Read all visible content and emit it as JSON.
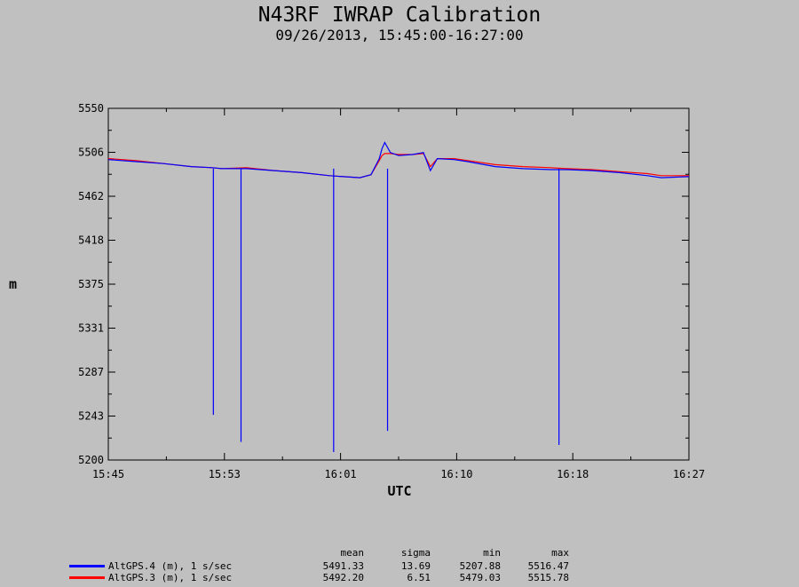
{
  "chart_data": {
    "type": "line",
    "title": "N43RF IWRAP Calibration",
    "subtitle": "09/26/2013, 15:45:00-16:27:00",
    "xlabel": "UTC",
    "ylabel": "m",
    "ylim": [
      5200,
      5550
    ],
    "xlim": [
      "15:45",
      "16:27"
    ],
    "yticks": [
      "5200",
      "5243",
      "5287",
      "5331",
      "5375",
      "5418",
      "5462",
      "5506",
      "5550"
    ],
    "xticks": [
      "15:45",
      "15:53",
      "16:01",
      "16:10",
      "16:18",
      "16:27"
    ],
    "grid": false,
    "legend_position": "bottom-left",
    "stat_headers": [
      "mean",
      "sigma",
      "min",
      "max"
    ],
    "series": [
      {
        "name": "AltGPS.4 (m), 1 s/sec",
        "color": "#0000ff",
        "stats": [
          "5491.33",
          "13.69",
          "5207.88",
          "5516.47"
        ],
        "points": [
          [
            "15:45",
            5499
          ],
          [
            "15:47",
            5497
          ],
          [
            "15:49",
            5495
          ],
          [
            "15:51",
            5492
          ],
          [
            "15:52.5",
            5491
          ],
          [
            "15:53.2",
            5490
          ],
          [
            "15:55",
            5490
          ],
          [
            "15:57",
            5488
          ],
          [
            "15:59",
            5486
          ],
          [
            "16:01",
            5483
          ],
          [
            "16:02",
            5482
          ],
          [
            "16:03.2",
            5481
          ],
          [
            "16:04",
            5484
          ],
          [
            "16:04.6",
            5500
          ],
          [
            "16:04.8",
            5510
          ],
          [
            "16:05",
            5516
          ],
          [
            "16:05.4",
            5506
          ],
          [
            "16:06",
            5503
          ],
          [
            "16:07",
            5504
          ],
          [
            "16:07.8",
            5506
          ],
          [
            "16:08.3",
            5488
          ],
          [
            "16:08.8",
            5500
          ],
          [
            "16:10",
            5499
          ],
          [
            "16:11",
            5497
          ],
          [
            "16:13",
            5492
          ],
          [
            "16:15",
            5490
          ],
          [
            "16:17",
            5489
          ],
          [
            "16:18.2",
            5489
          ],
          [
            "16:20",
            5488
          ],
          [
            "16:22",
            5486
          ],
          [
            "16:24",
            5483
          ],
          [
            "16:25",
            5481
          ],
          [
            "16:27",
            5482
          ]
        ],
        "spikes": [
          {
            "time": "15:52.6",
            "min": 5245
          },
          {
            "time": "15:54.6",
            "min": 5218
          },
          {
            "time": "16:01.3",
            "min": 5208
          },
          {
            "time": "16:05.2",
            "min": 5229
          },
          {
            "time": "16:17.6",
            "min": 5215
          }
        ]
      },
      {
        "name": "AltGPS.3 (m), 1 s/sec",
        "color": "#ff0000",
        "stats": [
          "5492.20",
          "6.51",
          "5479.03",
          "5515.78"
        ],
        "points": [
          [
            "15:45",
            5500
          ],
          [
            "15:47",
            5498
          ],
          [
            "15:49",
            5495
          ],
          [
            "15:51",
            5492
          ],
          [
            "15:52.5",
            5491
          ],
          [
            "15:53.2",
            5490
          ],
          [
            "15:55",
            5491
          ],
          [
            "15:57",
            5488
          ],
          [
            "15:59",
            5486
          ],
          [
            "16:01",
            5483
          ],
          [
            "16:02",
            5482
          ],
          [
            "16:03.2",
            5481
          ],
          [
            "16:04",
            5484
          ],
          [
            "16:04.6",
            5498
          ],
          [
            "16:04.8",
            5503
          ],
          [
            "16:05",
            5505
          ],
          [
            "16:05.4",
            5505
          ],
          [
            "16:06",
            5504
          ],
          [
            "16:07",
            5504
          ],
          [
            "16:07.8",
            5505
          ],
          [
            "16:08.3",
            5492
          ],
          [
            "16:08.8",
            5500
          ],
          [
            "16:10",
            5500
          ],
          [
            "16:11",
            5498
          ],
          [
            "16:13",
            5494
          ],
          [
            "16:15",
            5492
          ],
          [
            "16:17",
            5491
          ],
          [
            "16:18.2",
            5490
          ],
          [
            "16:20",
            5489
          ],
          [
            "16:22",
            5487
          ],
          [
            "16:24",
            5485
          ],
          [
            "16:25",
            5483
          ],
          [
            "16:27",
            5483
          ]
        ]
      }
    ]
  }
}
